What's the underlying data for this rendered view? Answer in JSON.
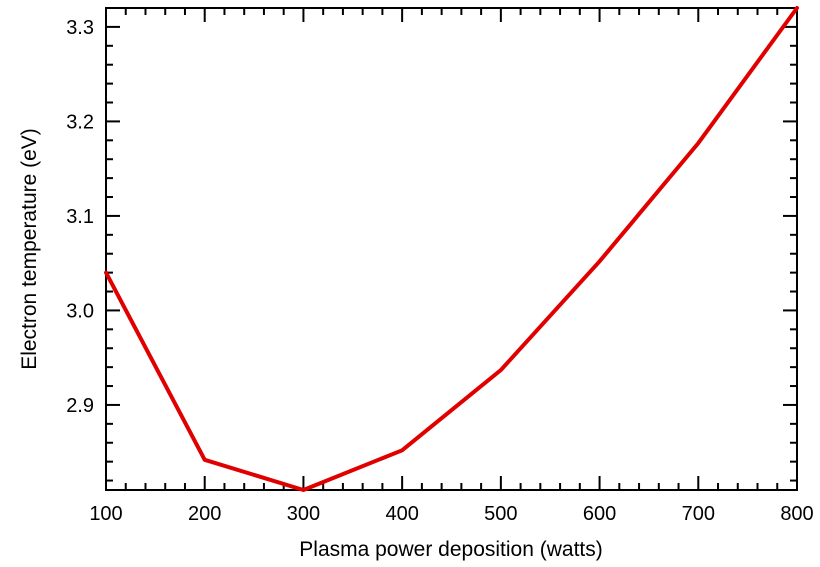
{
  "chart_data": {
    "type": "line",
    "title": "",
    "xlabel": "Plasma power deposition (watts)",
    "ylabel": "Electron temperature (eV)",
    "xlim": [
      100,
      800
    ],
    "ylim": [
      2.81,
      3.32
    ],
    "x_ticks": [
      100,
      200,
      300,
      400,
      500,
      600,
      700,
      800
    ],
    "y_ticks": [
      2.9,
      3.0,
      3.1,
      3.2,
      3.3
    ],
    "x_tick_labels": [
      "100",
      "200",
      "300",
      "400",
      "500",
      "600",
      "700",
      "800"
    ],
    "y_tick_labels": [
      "2.9",
      "3.0",
      "3.1",
      "3.2",
      "3.3"
    ],
    "grid": false,
    "series": [
      {
        "color": "#e00000",
        "x": [
          100,
          200,
          300,
          400,
          500,
          600,
          700,
          800
        ],
        "y": [
          3.04,
          2.842,
          2.81,
          2.852,
          2.937,
          3.052,
          3.177,
          3.32
        ]
      }
    ]
  }
}
